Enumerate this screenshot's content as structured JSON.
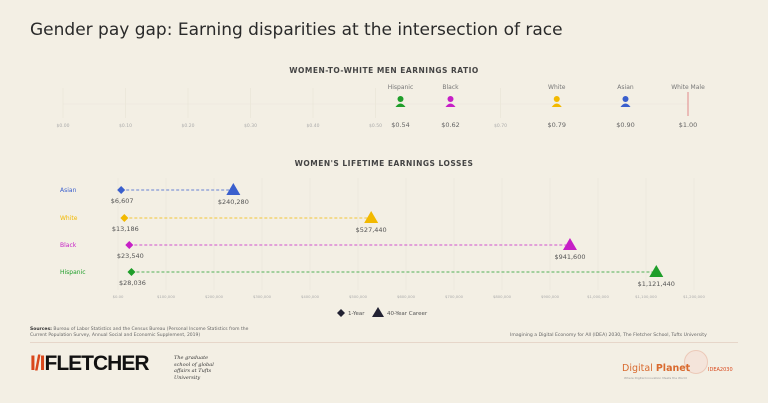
{
  "title": "Gender pay gap: Earning disparities at the intersection of race",
  "chart_data": [
    {
      "type": "scatter",
      "title": "WOMEN-TO-WHITE MEN EARNINGS RATIO",
      "xlim": [
        0,
        1.0
      ],
      "tick_labels": [
        "$0.00",
        "$0.10",
        "$0.20",
        "$0.30",
        "$0.40",
        "$0.50",
        "$0.70"
      ],
      "tick_values": [
        0,
        0.1,
        0.2,
        0.3,
        0.4,
        0.5,
        0.7
      ],
      "points": [
        {
          "label": "Hispanic",
          "value": 0.54,
          "value_label": "$0.54",
          "color": "#1f9e2a"
        },
        {
          "label": "Black",
          "value": 0.62,
          "value_label": "$0.62",
          "color": "#c61fc6"
        },
        {
          "label": "White",
          "value": 0.79,
          "value_label": "$0.79",
          "color": "#f2b900"
        },
        {
          "label": "Asian",
          "value": 0.9,
          "value_label": "$0.90",
          "color": "#3a5fcd"
        }
      ],
      "reference": {
        "label": "White Male",
        "value": 1.0,
        "value_label": "$1.00",
        "color": "#e08a8a"
      },
      "icon": "woman-icon"
    },
    {
      "type": "dumbbell",
      "title": "WOMEN'S LIFETIME EARNINGS LOSSES",
      "xlim": [
        0,
        1200000
      ],
      "tick_labels": [
        "$0.00",
        "$100,000",
        "$200,000",
        "$300,000",
        "$400,000",
        "$500,000",
        "$600,000",
        "$700,000",
        "$800,000",
        "$900,000",
        "$1,000,000",
        "$1,100,000",
        "$1,200,000"
      ],
      "categories": [
        "Asian",
        "White",
        "Black",
        "Hispanic"
      ],
      "colors": [
        "#3a5fcd",
        "#f2b900",
        "#c61fc6",
        "#1f9e2a"
      ],
      "series": [
        {
          "name": "1-Year",
          "marker": "diamond",
          "values": [
            6607,
            13186,
            23540,
            28036
          ],
          "labels": [
            "$6,607",
            "$13,186",
            "$23,540",
            "$28,036"
          ]
        },
        {
          "name": "40-Year Career",
          "marker": "triangle",
          "values": [
            240280,
            527440,
            941600,
            1121440
          ],
          "labels": [
            "$240,280",
            "$527,440",
            "$941,600",
            "$1,121,440"
          ]
        }
      ],
      "legend": "bottom"
    }
  ],
  "footer": {
    "source_label": "Sources:",
    "source_text": "Bureau of Labor Statistics and the Census Bureau (Personal Income Statistics from the Current Population Survey, Annual Social and Economic Supplement, 2019)",
    "credit": "Imagining a Digital Economy for All (IDEA) 2030, The Fletcher School, Tufts University",
    "fletcher_logo": "FLETCHER",
    "fletcher_tagline": "The graduate school of global affairs at Tufts University",
    "dp_logo_1": "Digital ",
    "dp_logo_2": "Planet",
    "dp_sub": "Where Digital Innovation Meets the World",
    "idea_logo": "IDEA2030"
  }
}
